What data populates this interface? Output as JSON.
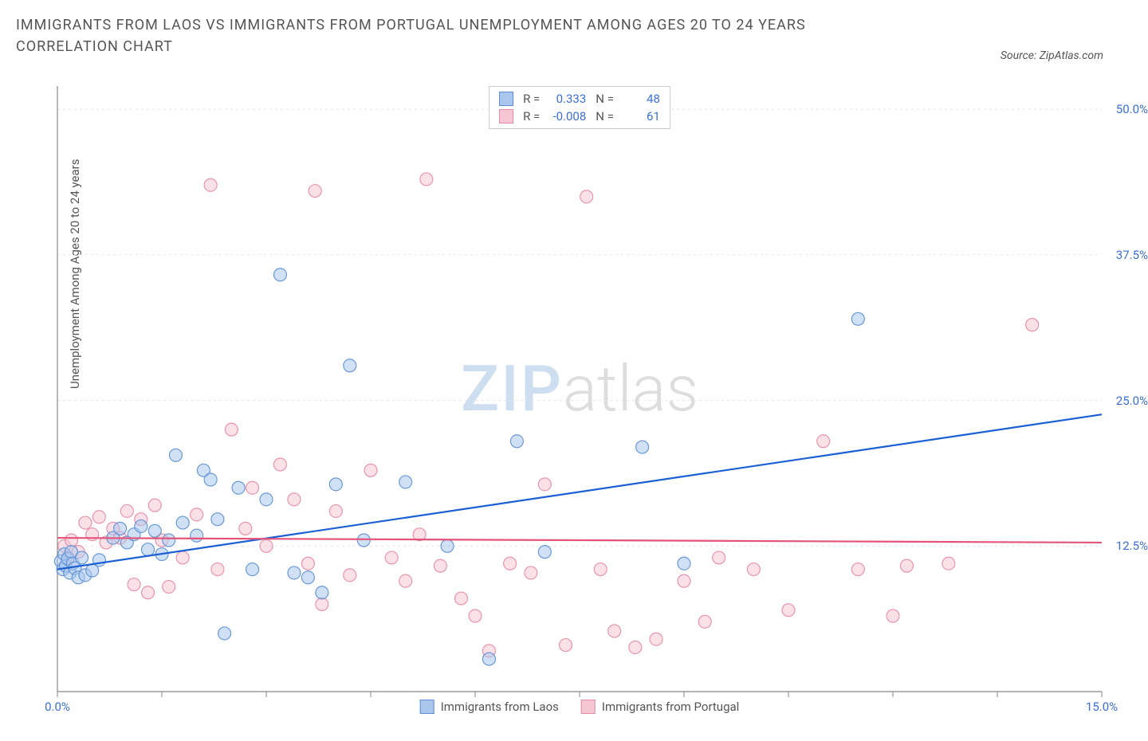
{
  "title": "IMMIGRANTS FROM LAOS VS IMMIGRANTS FROM PORTUGAL UNEMPLOYMENT AMONG AGES 20 TO 24 YEARS CORRELATION CHART",
  "source": "Source: ZipAtlas.com",
  "y_axis_label": "Unemployment Among Ages 20 to 24 years",
  "watermark_zip": "ZIP",
  "watermark_atlas": "atlas",
  "chart": {
    "type": "scatter",
    "xlim": [
      0,
      15
    ],
    "ylim": [
      0,
      52
    ],
    "x_ticks": [
      0,
      1.5,
      3,
      4.5,
      6,
      7.5,
      9,
      10.5,
      12,
      13.5,
      15
    ],
    "x_tick_labels": {
      "0": "0.0%",
      "15": "15.0%"
    },
    "y_ticks": [
      12.5,
      25.0,
      37.5,
      50.0
    ],
    "y_tick_labels": [
      "12.5%",
      "25.0%",
      "37.5%",
      "50.0%"
    ],
    "grid_color": "#e5e5e5",
    "grid_dash": "3,4",
    "axis_color": "#888888",
    "background_color": "#ffffff",
    "right_label_color": "#3b6fd6",
    "x_label_color": "#3b6fd6",
    "marker_radius": 8,
    "marker_opacity": 0.55,
    "series": [
      {
        "name": "Immigrants from Laos",
        "color_fill": "#a9c7ec",
        "color_stroke": "#5b8fd0",
        "R": "0.333",
        "N": "48",
        "trend": {
          "x1": 0,
          "y1": 10.5,
          "x2": 15,
          "y2": 23.8,
          "color": "#1b5fd4",
          "width": 2.2
        },
        "points": [
          [
            0.05,
            11.2
          ],
          [
            0.08,
            10.5
          ],
          [
            0.1,
            11.8
          ],
          [
            0.12,
            10.8
          ],
          [
            0.15,
            11.4
          ],
          [
            0.18,
            10.2
          ],
          [
            0.2,
            12.0
          ],
          [
            0.22,
            11.0
          ],
          [
            0.25,
            10.6
          ],
          [
            0.3,
            9.8
          ],
          [
            0.35,
            11.5
          ],
          [
            0.4,
            10.0
          ],
          [
            0.5,
            10.4
          ],
          [
            0.6,
            11.3
          ],
          [
            0.8,
            13.2
          ],
          [
            0.9,
            14.0
          ],
          [
            1.0,
            12.8
          ],
          [
            1.1,
            13.5
          ],
          [
            1.2,
            14.2
          ],
          [
            1.3,
            12.2
          ],
          [
            1.4,
            13.8
          ],
          [
            1.5,
            11.8
          ],
          [
            1.6,
            13.0
          ],
          [
            1.7,
            20.3
          ],
          [
            1.8,
            14.5
          ],
          [
            2.0,
            13.4
          ],
          [
            2.1,
            19.0
          ],
          [
            2.2,
            18.2
          ],
          [
            2.3,
            14.8
          ],
          [
            2.4,
            5.0
          ],
          [
            2.6,
            17.5
          ],
          [
            2.8,
            10.5
          ],
          [
            3.0,
            16.5
          ],
          [
            3.2,
            35.8
          ],
          [
            3.4,
            10.2
          ],
          [
            3.6,
            9.8
          ],
          [
            3.8,
            8.5
          ],
          [
            4.0,
            17.8
          ],
          [
            4.2,
            28.0
          ],
          [
            4.4,
            13.0
          ],
          [
            5.0,
            18.0
          ],
          [
            5.6,
            12.5
          ],
          [
            6.2,
            2.8
          ],
          [
            6.6,
            21.5
          ],
          [
            7.0,
            12.0
          ],
          [
            8.4,
            21.0
          ],
          [
            9.0,
            11.0
          ],
          [
            11.5,
            32.0
          ]
        ]
      },
      {
        "name": "Immigrants from Portugal",
        "color_fill": "#f5c6d3",
        "color_stroke": "#e68aa6",
        "R": "-0.008",
        "N": "61",
        "trend": {
          "x1": 0,
          "y1": 13.2,
          "x2": 15,
          "y2": 12.8,
          "color": "#e4537a",
          "width": 2.2
        },
        "points": [
          [
            0.1,
            12.5
          ],
          [
            0.15,
            11.5
          ],
          [
            0.2,
            13.0
          ],
          [
            0.3,
            12.0
          ],
          [
            0.4,
            14.5
          ],
          [
            0.5,
            13.5
          ],
          [
            0.6,
            15.0
          ],
          [
            0.7,
            12.8
          ],
          [
            0.8,
            14.0
          ],
          [
            0.9,
            13.2
          ],
          [
            1.0,
            15.5
          ],
          [
            1.1,
            9.2
          ],
          [
            1.2,
            14.8
          ],
          [
            1.3,
            8.5
          ],
          [
            1.4,
            16.0
          ],
          [
            1.5,
            13.0
          ],
          [
            1.6,
            9.0
          ],
          [
            1.8,
            11.5
          ],
          [
            2.0,
            15.2
          ],
          [
            2.2,
            43.5
          ],
          [
            2.3,
            10.5
          ],
          [
            2.5,
            22.5
          ],
          [
            2.7,
            14.0
          ],
          [
            2.8,
            17.5
          ],
          [
            3.0,
            12.5
          ],
          [
            3.2,
            19.5
          ],
          [
            3.4,
            16.5
          ],
          [
            3.6,
            11.0
          ],
          [
            3.7,
            43.0
          ],
          [
            3.8,
            7.5
          ],
          [
            4.0,
            15.5
          ],
          [
            4.2,
            10.0
          ],
          [
            4.5,
            19.0
          ],
          [
            4.8,
            11.5
          ],
          [
            5.0,
            9.5
          ],
          [
            5.2,
            13.5
          ],
          [
            5.3,
            44.0
          ],
          [
            5.5,
            10.8
          ],
          [
            5.8,
            8.0
          ],
          [
            6.0,
            6.5
          ],
          [
            6.2,
            3.5
          ],
          [
            6.5,
            11.0
          ],
          [
            6.8,
            10.2
          ],
          [
            7.0,
            17.8
          ],
          [
            7.3,
            4.0
          ],
          [
            7.6,
            42.5
          ],
          [
            7.8,
            10.5
          ],
          [
            8.0,
            5.2
          ],
          [
            8.3,
            3.8
          ],
          [
            8.6,
            4.5
          ],
          [
            9.0,
            9.5
          ],
          [
            9.3,
            6.0
          ],
          [
            9.5,
            11.5
          ],
          [
            10.0,
            10.5
          ],
          [
            10.5,
            7.0
          ],
          [
            11.0,
            21.5
          ],
          [
            11.5,
            10.5
          ],
          [
            12.0,
            6.5
          ],
          [
            12.2,
            10.8
          ],
          [
            12.8,
            11.0
          ],
          [
            14.0,
            31.5
          ]
        ]
      }
    ]
  },
  "legend_top": {
    "r_label": "R =",
    "n_label": "N ="
  },
  "legend_bottom": [
    {
      "swatch_fill": "#a9c7ec",
      "swatch_stroke": "#5b8fd0",
      "label": "Immigrants from Laos"
    },
    {
      "swatch_fill": "#f5c6d3",
      "swatch_stroke": "#e68aa6",
      "label": "Immigrants from Portugal"
    }
  ]
}
